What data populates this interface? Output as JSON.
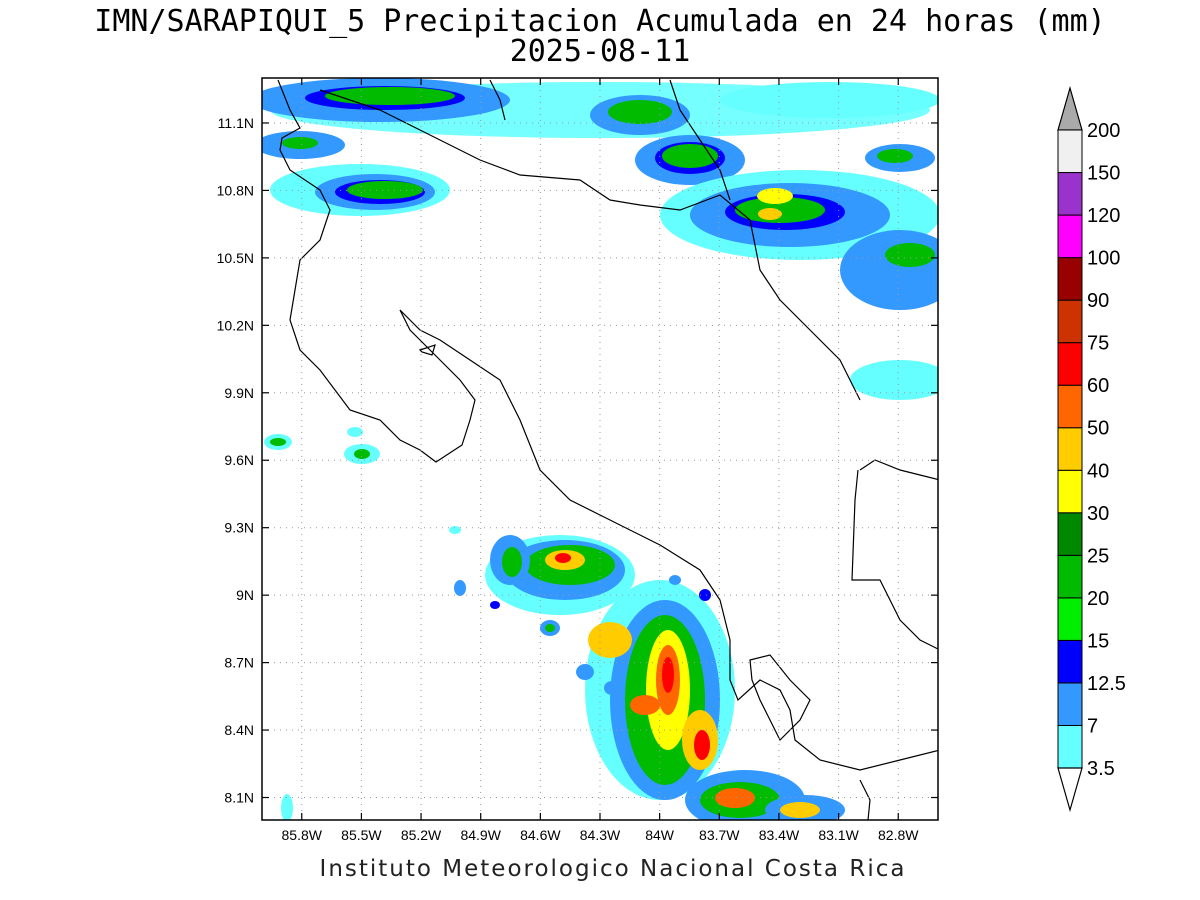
{
  "title": {
    "line1": "IMN/SARAPIQUI_5 Precipitacion Acumulada en 24 horas (mm)",
    "line2": "2025-08-11"
  },
  "footer": "Instituto Meteorologico Nacional Costa Rica",
  "map": {
    "lon_range": [
      -86.0,
      -82.6
    ],
    "lat_range": [
      8.0,
      11.3
    ],
    "lat_ticks": [
      "11.1N",
      "10.8N",
      "10.5N",
      "10.2N",
      "9.9N",
      "9.6N",
      "9.3N",
      "9N",
      "8.7N",
      "8.4N",
      "8.1N"
    ],
    "lon_ticks": [
      "85.8W",
      "85.5W",
      "85.2W",
      "84.9W",
      "84.6W",
      "84.3W",
      "84W",
      "83.7W",
      "83.4W",
      "83.1W",
      "82.8W"
    ],
    "grid": true
  },
  "colorbar": {
    "levels": [
      "3.5",
      "7",
      "12.5",
      "15",
      "20",
      "25",
      "30",
      "40",
      "50",
      "60",
      "75",
      "90",
      "100",
      "120",
      "150",
      "200"
    ],
    "colors": [
      "#66ffff",
      "#3399ff",
      "#0000ff",
      "#00ee00",
      "#00bb00",
      "#008800",
      "#ffff00",
      "#ffcc00",
      "#ff6600",
      "#ff0000",
      "#cc3300",
      "#990000",
      "#ff00ff",
      "#9933cc",
      "#f0f0f0",
      "#aaaaaa"
    ]
  }
}
